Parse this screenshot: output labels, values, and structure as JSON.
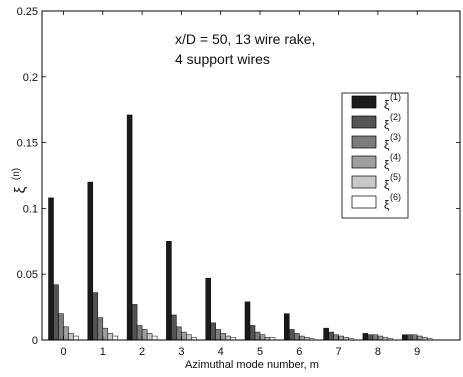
{
  "chart_data": {
    "type": "bar",
    "annotation_lines": [
      "x/D = 50, 13 wire rake,",
      "4 support wires"
    ],
    "xlabel": "Azimuthal mode number, m",
    "ylabel_symbol": "ξ",
    "ylabel_superscript": "(n)",
    "ylim": [
      0,
      0.25
    ],
    "yticks": [
      "0",
      "0.05",
      "0.1",
      "0.15",
      "0.2",
      "0.25"
    ],
    "categories": [
      "0",
      "1",
      "2",
      "3",
      "4",
      "5",
      "6",
      "7",
      "8",
      "9"
    ],
    "legend_position": "right",
    "series": [
      {
        "symbol": "ξ",
        "sup": "(1)",
        "color": "#1a1a1a",
        "values": [
          0.108,
          0.12,
          0.171,
          0.075,
          0.047,
          0.029,
          0.02,
          0.009,
          0.005,
          0.004
        ]
      },
      {
        "symbol": "ξ",
        "sup": "(2)",
        "color": "#545454",
        "values": [
          0.042,
          0.036,
          0.027,
          0.019,
          0.013,
          0.011,
          0.008,
          0.006,
          0.004,
          0.004
        ]
      },
      {
        "symbol": "ξ",
        "sup": "(3)",
        "color": "#7c7c7c",
        "values": [
          0.02,
          0.017,
          0.011,
          0.01,
          0.008,
          0.006,
          0.005,
          0.004,
          0.004,
          0.004
        ]
      },
      {
        "symbol": "ξ",
        "sup": "(4)",
        "color": "#9e9e9e",
        "values": [
          0.01,
          0.009,
          0.008,
          0.006,
          0.005,
          0.004,
          0.003,
          0.003,
          0.003,
          0.003
        ]
      },
      {
        "symbol": "ξ",
        "sup": "(5)",
        "color": "#c8c8c8",
        "values": [
          0.005,
          0.005,
          0.005,
          0.004,
          0.003,
          0.002,
          0.002,
          0.002,
          0.002,
          0.002
        ]
      },
      {
        "symbol": "ξ",
        "sup": "(6)",
        "color": "#ffffff",
        "values": [
          0.003,
          0.003,
          0.003,
          0.002,
          0.002,
          0.002,
          0.001,
          0.001,
          0.001,
          0.001
        ]
      }
    ]
  }
}
